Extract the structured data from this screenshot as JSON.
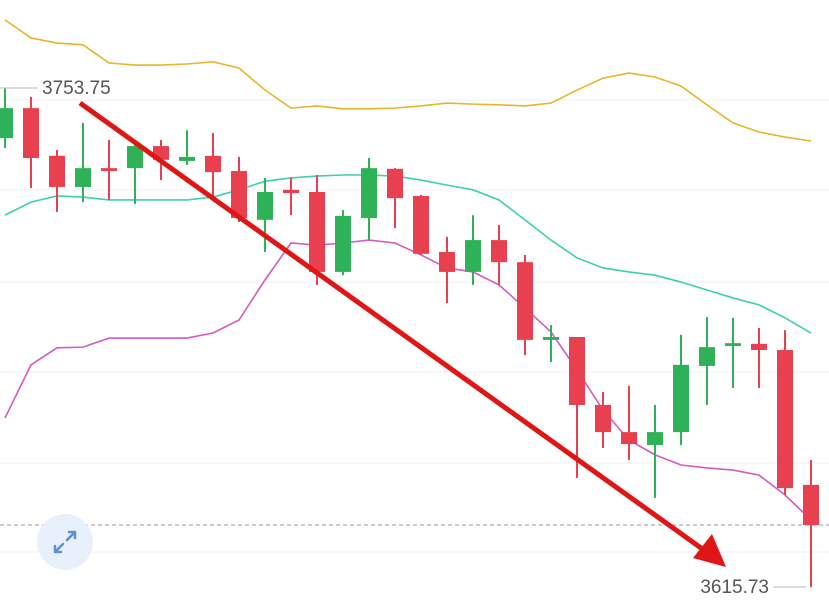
{
  "chart_data": {
    "type": "candlestick",
    "ylim": [
      3609.4,
      3778.1
    ],
    "up_color": "#2eb257",
    "down_color": "#e8404e",
    "open": [
      3739.9,
      3748.2,
      3735.0,
      3726.4,
      3731.6,
      3731.6,
      3737.7,
      3733.6,
      3735.0,
      3730.8,
      3717.3,
      3725.6,
      3725.0,
      3702.9,
      3717.8,
      3731.4,
      3723.9,
      3708.4,
      3702.9,
      3711.7,
      3705.6,
      3684.1,
      3684.9,
      3666.1,
      3658.6,
      3655.0,
      3658.6,
      3676.9,
      3682.4,
      3683.0,
      3681.3,
      3644.0
    ],
    "high": [
      3753.75,
      3751.3,
      3736.6,
      3744.1,
      3739.4,
      3739.4,
      3739.4,
      3742.1,
      3741.3,
      3734.7,
      3728.9,
      3728.9,
      3729.7,
      3720.0,
      3734.4,
      3731.6,
      3724.2,
      3712.6,
      3718.6,
      3715.9,
      3707.6,
      3688.2,
      3684.9,
      3669.7,
      3671.4,
      3666.1,
      3685.5,
      3690.4,
      3690.2,
      3687.4,
      3686.8,
      3650.9
    ],
    "low": [
      3737.2,
      3726.1,
      3719.5,
      3722.2,
      3722.8,
      3721.7,
      3728.3,
      3732.5,
      3723.3,
      3716.7,
      3708.4,
      3718.6,
      3699.3,
      3702.0,
      3711.7,
      3715.0,
      3707.6,
      3694.3,
      3699.3,
      3699.3,
      3679.9,
      3678.0,
      3645.9,
      3654.2,
      3650.9,
      3640.4,
      3655.0,
      3666.1,
      3670.8,
      3670.8,
      3641.2,
      3615.73
    ],
    "close": [
      3748.2,
      3734.4,
      3726.4,
      3731.6,
      3730.8,
      3737.7,
      3733.9,
      3734.7,
      3730.5,
      3717.8,
      3725.0,
      3724.7,
      3702.9,
      3718.4,
      3731.6,
      3723.3,
      3707.9,
      3702.9,
      3711.7,
      3705.6,
      3684.1,
      3684.9,
      3666.1,
      3658.6,
      3655.3,
      3658.6,
      3677.2,
      3682.1,
      3683.2,
      3681.3,
      3643.1,
      3632.9
    ],
    "lines": [
      {
        "color": "#e8b52a",
        "values": [
          3772.6,
          3767.6,
          3766.2,
          3765.7,
          3760.7,
          3760.1,
          3760.1,
          3760.4,
          3761.0,
          3759.3,
          3753.2,
          3748.2,
          3748.8,
          3748.0,
          3748.0,
          3748.2,
          3748.8,
          3749.6,
          3749.3,
          3749.1,
          3748.8,
          3749.6,
          3753.2,
          3756.5,
          3757.9,
          3756.8,
          3754.3,
          3749.1,
          3744.1,
          3741.6,
          3740.2,
          3739.1
        ]
      },
      {
        "color": "#3ccfb0",
        "values": [
          3718.6,
          3722.2,
          3723.9,
          3723.6,
          3722.8,
          3722.8,
          3722.8,
          3722.8,
          3723.6,
          3725.6,
          3728.0,
          3728.9,
          3729.4,
          3729.7,
          3729.7,
          3729.4,
          3728.3,
          3726.9,
          3725.6,
          3722.8,
          3717.3,
          3711.7,
          3706.8,
          3704.0,
          3702.9,
          3702.0,
          3700.1,
          3697.9,
          3695.7,
          3693.8,
          3690.2,
          3686.0
        ]
      },
      {
        "color": "#d659c2",
        "values": [
          3662.5,
          3677.2,
          3681.9,
          3682.1,
          3684.6,
          3684.6,
          3684.6,
          3684.6,
          3686.0,
          3689.6,
          3700.7,
          3710.9,
          3710.3,
          3710.9,
          3711.7,
          3710.9,
          3707.6,
          3704.0,
          3702.9,
          3699.3,
          3692.9,
          3686.3,
          3675.8,
          3664.7,
          3656.4,
          3652.3,
          3649.5,
          3648.7,
          3648.1,
          3646.7,
          3641.2,
          3634.3
        ]
      }
    ]
  }
}
